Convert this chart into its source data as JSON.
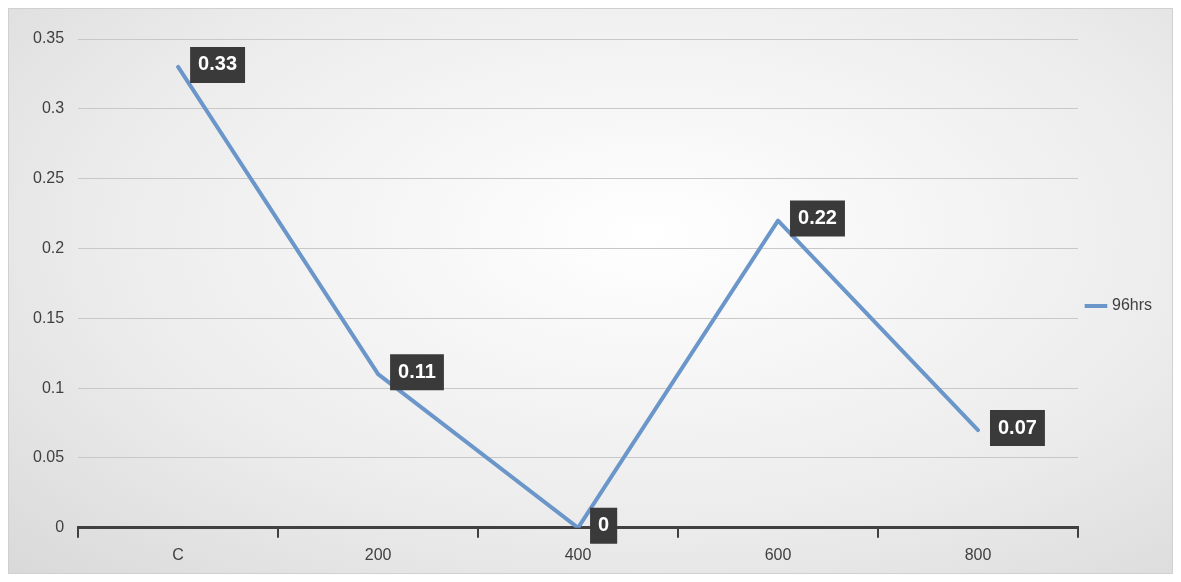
{
  "chart_data": {
    "type": "line",
    "categories": [
      "C",
      "200",
      "400",
      "600",
      "800"
    ],
    "series": [
      {
        "name": "96hrs",
        "color": "#6b96c9",
        "values": [
          0.33,
          0.11,
          0,
          0.22,
          0.07
        ]
      }
    ],
    "ylim": [
      0,
      0.35
    ],
    "yticks": [
      0,
      0.05,
      0.1,
      0.15,
      0.2,
      0.25,
      0.3,
      0.35
    ],
    "grid": "y",
    "legend": "right",
    "marker": "none",
    "line_style": "solid",
    "data_labels": true
  }
}
